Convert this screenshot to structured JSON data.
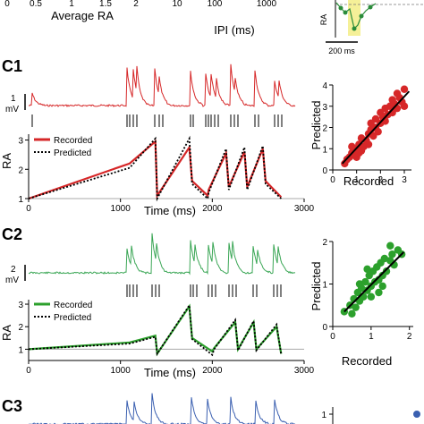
{
  "top": {
    "ticks_left": [
      "0",
      "0.5",
      "1",
      "1.5",
      "2"
    ],
    "xlabel_left": "Average RA",
    "ticks_right": [
      "10",
      "100",
      "1000"
    ],
    "xlabel_right": "IPI (ms)",
    "ylabel_inset": "RA",
    "scale_bar_inset": "200 ms"
  },
  "panels": [
    {
      "id": "C1",
      "color": "#d62728",
      "scale_bar": {
        "value": "1",
        "unit": "mV"
      },
      "ra_plot": {
        "ylabel": "RA",
        "xlabel": "Time (ms)",
        "x_ticks": [
          "0",
          "1000",
          "2000",
          "3000"
        ],
        "y_ticks": [
          "1",
          "2",
          "3"
        ],
        "legend": [
          "Recorded",
          "Predicted"
        ]
      },
      "scatter": {
        "xlabel": "Recorded",
        "ylabel": "Predicted",
        "x_ticks": [
          "0",
          "1",
          "2",
          "3"
        ],
        "y_ticks": [
          "0",
          "1",
          "2",
          "3",
          "4"
        ]
      }
    },
    {
      "id": "C2",
      "color": "#2ca02c",
      "scale_bar": {
        "value": "2",
        "unit": "mV"
      },
      "ra_plot": {
        "ylabel": "RA",
        "xlabel": "Time (ms)",
        "x_ticks": [
          "0",
          "1000",
          "2000",
          "3000"
        ],
        "y_ticks": [
          "1",
          "2",
          "3"
        ],
        "legend": [
          "Recorded",
          "Predicted"
        ]
      },
      "scatter": {
        "xlabel": "Recorded",
        "ylabel": "Predicted",
        "x_ticks": [
          "0",
          "1",
          "2"
        ],
        "y_ticks": [
          "0",
          "1",
          "2"
        ]
      }
    },
    {
      "id": "C3",
      "color": "#3a5fb0",
      "scatter": {
        "y_ticks": [
          "1"
        ]
      }
    }
  ],
  "chart_data": [
    {
      "type": "line",
      "panel": "C1",
      "xlabel": "Time (ms)",
      "ylabel": "RA",
      "xlim": [
        0,
        3000
      ],
      "ylim": [
        1,
        3.2
      ],
      "series": [
        {
          "name": "Recorded",
          "x": [
            0,
            1100,
            1380,
            1400,
            1750,
            1780,
            1950,
            1960,
            2150,
            2180,
            2350,
            2380,
            2550,
            2580,
            2750
          ],
          "y": [
            1.0,
            2.2,
            2.95,
            1.1,
            2.75,
            1.6,
            1.1,
            1.3,
            2.55,
            1.4,
            2.6,
            1.4,
            2.7,
            1.6,
            1.05
          ]
        },
        {
          "name": "Predicted",
          "x": [
            0,
            1100,
            1380,
            1400,
            1750,
            1780,
            1950,
            1960,
            2150,
            2180,
            2350,
            2380,
            2550,
            2580,
            2750
          ],
          "y": [
            1.0,
            2.05,
            3.05,
            1.0,
            3.05,
            1.5,
            1.0,
            1.2,
            2.7,
            1.3,
            2.75,
            1.3,
            2.8,
            1.5,
            1.0
          ]
        }
      ]
    },
    {
      "type": "line",
      "panel": "C2",
      "xlabel": "Time (ms)",
      "ylabel": "RA",
      "xlim": [
        0,
        3000
      ],
      "ylim": [
        0.5,
        3.2
      ],
      "series": [
        {
          "name": "Recorded",
          "x": [
            0,
            1100,
            1380,
            1400,
            1750,
            1780,
            2000,
            2020,
            2250,
            2280,
            2450,
            2480,
            2700,
            2750
          ],
          "y": [
            1.0,
            1.3,
            1.6,
            0.8,
            2.9,
            1.5,
            0.9,
            1.05,
            2.2,
            1.0,
            2.2,
            1.0,
            2.0,
            0.8
          ]
        },
        {
          "name": "Predicted",
          "x": [
            0,
            1100,
            1380,
            1400,
            1750,
            1780,
            2000,
            2020,
            2250,
            2280,
            2450,
            2480,
            2700,
            2750
          ],
          "y": [
            1.0,
            1.25,
            1.55,
            0.8,
            2.95,
            1.45,
            0.75,
            1.0,
            2.3,
            0.95,
            2.25,
            0.95,
            2.1,
            0.75
          ]
        }
      ]
    },
    {
      "type": "scatter",
      "panel": "C1",
      "xlabel": "Recorded",
      "ylabel": "Predicted",
      "xlim": [
        0,
        3.3
      ],
      "ylim": [
        0,
        4
      ],
      "points": [
        [
          0.5,
          0.3
        ],
        [
          0.6,
          0.5
        ],
        [
          0.7,
          0.6
        ],
        [
          0.8,
          0.8
        ],
        [
          0.9,
          0.7
        ],
        [
          1.0,
          1.0
        ],
        [
          1.0,
          0.6
        ],
        [
          1.1,
          1.2
        ],
        [
          1.2,
          0.9
        ],
        [
          1.2,
          1.5
        ],
        [
          1.3,
          1.1
        ],
        [
          1.4,
          1.4
        ],
        [
          1.5,
          1.7
        ],
        [
          1.5,
          1.2
        ],
        [
          1.6,
          1.9
        ],
        [
          1.7,
          1.6
        ],
        [
          1.8,
          2.0
        ],
        [
          1.8,
          2.4
        ],
        [
          1.9,
          1.8
        ],
        [
          2.0,
          2.2
        ],
        [
          2.0,
          2.7
        ],
        [
          2.1,
          2.5
        ],
        [
          2.2,
          2.3
        ],
        [
          2.2,
          2.9
        ],
        [
          2.3,
          2.6
        ],
        [
          2.4,
          3.0
        ],
        [
          2.5,
          2.7
        ],
        [
          2.5,
          3.3
        ],
        [
          2.6,
          3.1
        ],
        [
          2.7,
          2.9
        ],
        [
          2.8,
          3.4
        ],
        [
          2.9,
          3.2
        ],
        [
          3.0,
          3.8
        ],
        [
          3.0,
          3.0
        ],
        [
          1.1,
          0.8
        ],
        [
          0.8,
          1.1
        ],
        [
          1.6,
          2.2
        ],
        [
          2.7,
          3.6
        ]
      ],
      "fit": [
        [
          0.4,
          0.3
        ],
        [
          3.2,
          3.7
        ]
      ]
    },
    {
      "type": "scatter",
      "panel": "C2",
      "xlabel": "Recorded",
      "ylabel": "Predicted",
      "xlim": [
        0,
        2.1
      ],
      "ylim": [
        0,
        2
      ],
      "points": [
        [
          0.3,
          0.35
        ],
        [
          0.45,
          0.5
        ],
        [
          0.5,
          0.3
        ],
        [
          0.55,
          0.65
        ],
        [
          0.6,
          0.45
        ],
        [
          0.65,
          0.8
        ],
        [
          0.7,
          0.6
        ],
        [
          0.75,
          0.9
        ],
        [
          0.8,
          0.7
        ],
        [
          0.85,
          1.05
        ],
        [
          0.9,
          0.85
        ],
        [
          0.95,
          1.2
        ],
        [
          1.0,
          0.95
        ],
        [
          1.05,
          1.3
        ],
        [
          1.1,
          1.05
        ],
        [
          1.15,
          1.4
        ],
        [
          1.2,
          1.1
        ],
        [
          1.25,
          1.5
        ],
        [
          1.3,
          1.2
        ],
        [
          1.35,
          1.6
        ],
        [
          1.4,
          1.3
        ],
        [
          1.5,
          1.55
        ],
        [
          1.55,
          1.7
        ],
        [
          1.6,
          1.45
        ],
        [
          1.7,
          1.8
        ],
        [
          1.8,
          1.7
        ],
        [
          0.7,
          1.0
        ],
        [
          1.0,
          0.7
        ],
        [
          1.3,
          0.95
        ],
        [
          0.9,
          1.35
        ],
        [
          1.5,
          1.9
        ],
        [
          1.2,
          0.8
        ]
      ],
      "fit": [
        [
          0.3,
          0.35
        ],
        [
          1.85,
          1.75
        ]
      ]
    }
  ]
}
